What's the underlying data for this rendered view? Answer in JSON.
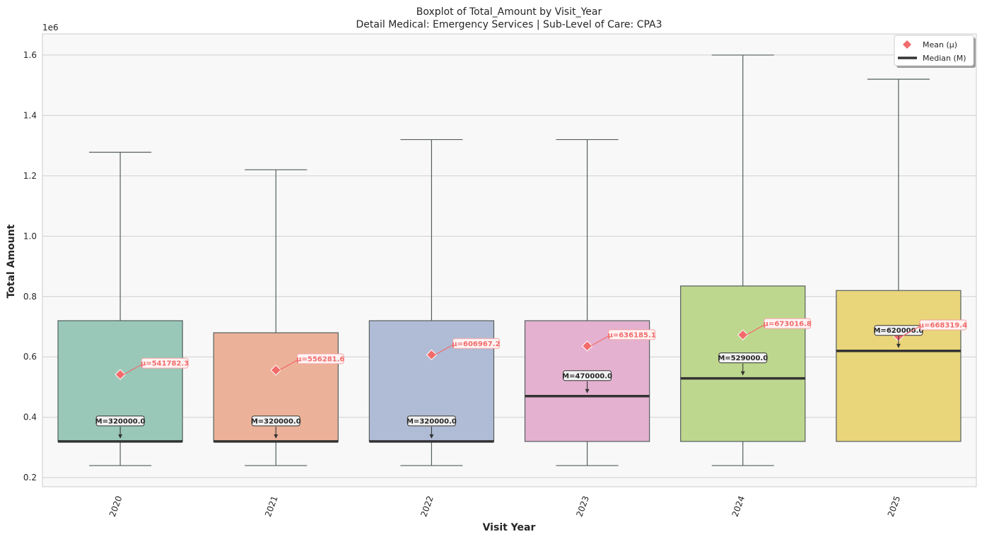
{
  "chart_data": {
    "type": "box",
    "title": "Boxplot of Total_Amount by Visit_Year",
    "subtitle": "Detail Medical: Emergency Services | Sub-Level of Care: CPA3",
    "xlabel": "Visit Year",
    "ylabel": "Total Amount",
    "offset_text": "1e6",
    "ylim": [
      0.17,
      1.67
    ],
    "yticks": [
      0.2,
      0.4,
      0.6,
      0.8,
      1.0,
      1.2,
      1.4,
      1.6
    ],
    "ytick_labels": [
      "0.2",
      "0.4",
      "0.6",
      "0.8",
      "1.0",
      "1.2",
      "1.4",
      "1.6"
    ],
    "grid": true,
    "legend_position": "top-right",
    "legend": [
      {
        "label": "Mean (μ)",
        "marker": "diamond",
        "color": "#f26b6b"
      },
      {
        "label": "Median (M)",
        "marker": "line",
        "color": "#333333"
      }
    ],
    "categories": [
      "2020",
      "2021",
      "2022",
      "2023",
      "2024",
      "2025"
    ],
    "boxes": [
      {
        "category": "2020",
        "whisker_low": 0.24,
        "q1": 0.32,
        "median": 0.32,
        "q3": 0.72,
        "whisker_high": 1.278,
        "mean": 0.5417823,
        "color": "#99c8b9",
        "median_label": "M=320000.0",
        "mean_label": "μ=541782.3"
      },
      {
        "category": "2021",
        "whisker_low": 0.24,
        "q1": 0.32,
        "median": 0.32,
        "q3": 0.68,
        "whisker_high": 1.22,
        "mean": 0.5562816,
        "color": "#ecb299",
        "median_label": "M=320000.0",
        "mean_label": "μ=556281.6"
      },
      {
        "category": "2022",
        "whisker_low": 0.24,
        "q1": 0.32,
        "median": 0.32,
        "q3": 0.72,
        "whisker_high": 1.32,
        "mean": 0.6069672,
        "color": "#b0bcd5",
        "median_label": "M=320000.0",
        "mean_label": "μ=606967.2"
      },
      {
        "category": "2023",
        "whisker_low": 0.24,
        "q1": 0.32,
        "median": 0.47,
        "q3": 0.72,
        "whisker_high": 1.32,
        "mean": 0.6361851,
        "color": "#e4b1d0",
        "median_label": "M=470000.0",
        "mean_label": "μ=636185.1"
      },
      {
        "category": "2024",
        "whisker_low": 0.24,
        "q1": 0.32,
        "median": 0.529,
        "q3": 0.835,
        "whisker_high": 1.6,
        "mean": 0.6730168,
        "color": "#bed78e",
        "median_label": "M=529000.0",
        "mean_label": "μ=673016.8"
      },
      {
        "category": "2025",
        "whisker_low": 0.32,
        "q1": 0.32,
        "median": 0.62,
        "q3": 0.82,
        "whisker_high": 1.52,
        "mean": 0.6683194,
        "color": "#e9d57a",
        "median_label": "M=620000.0",
        "mean_label": "μ=668319.4"
      }
    ],
    "mean_color": "#f26b6b",
    "median_color": "#333333"
  }
}
